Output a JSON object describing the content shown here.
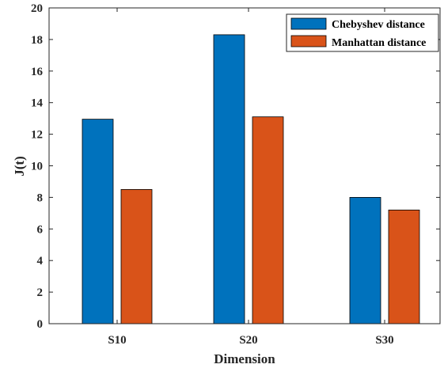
{
  "chart_data": {
    "type": "bar",
    "categories": [
      "S10",
      "S20",
      "S30"
    ],
    "series": [
      {
        "name": "Chebyshev distance",
        "values": [
          12.95,
          18.3,
          8.0
        ],
        "color": "#0072BD"
      },
      {
        "name": "Manhattan distance",
        "values": [
          8.5,
          13.1,
          7.2
        ],
        "color": "#D95319"
      }
    ],
    "xlabel": "Dimension",
    "ylabel": "J(t)",
    "ylim": [
      0,
      20
    ],
    "yticks": [
      0,
      2,
      4,
      6,
      8,
      10,
      12,
      14,
      16,
      18,
      20
    ],
    "grid": false,
    "legend_position": "top-right"
  }
}
